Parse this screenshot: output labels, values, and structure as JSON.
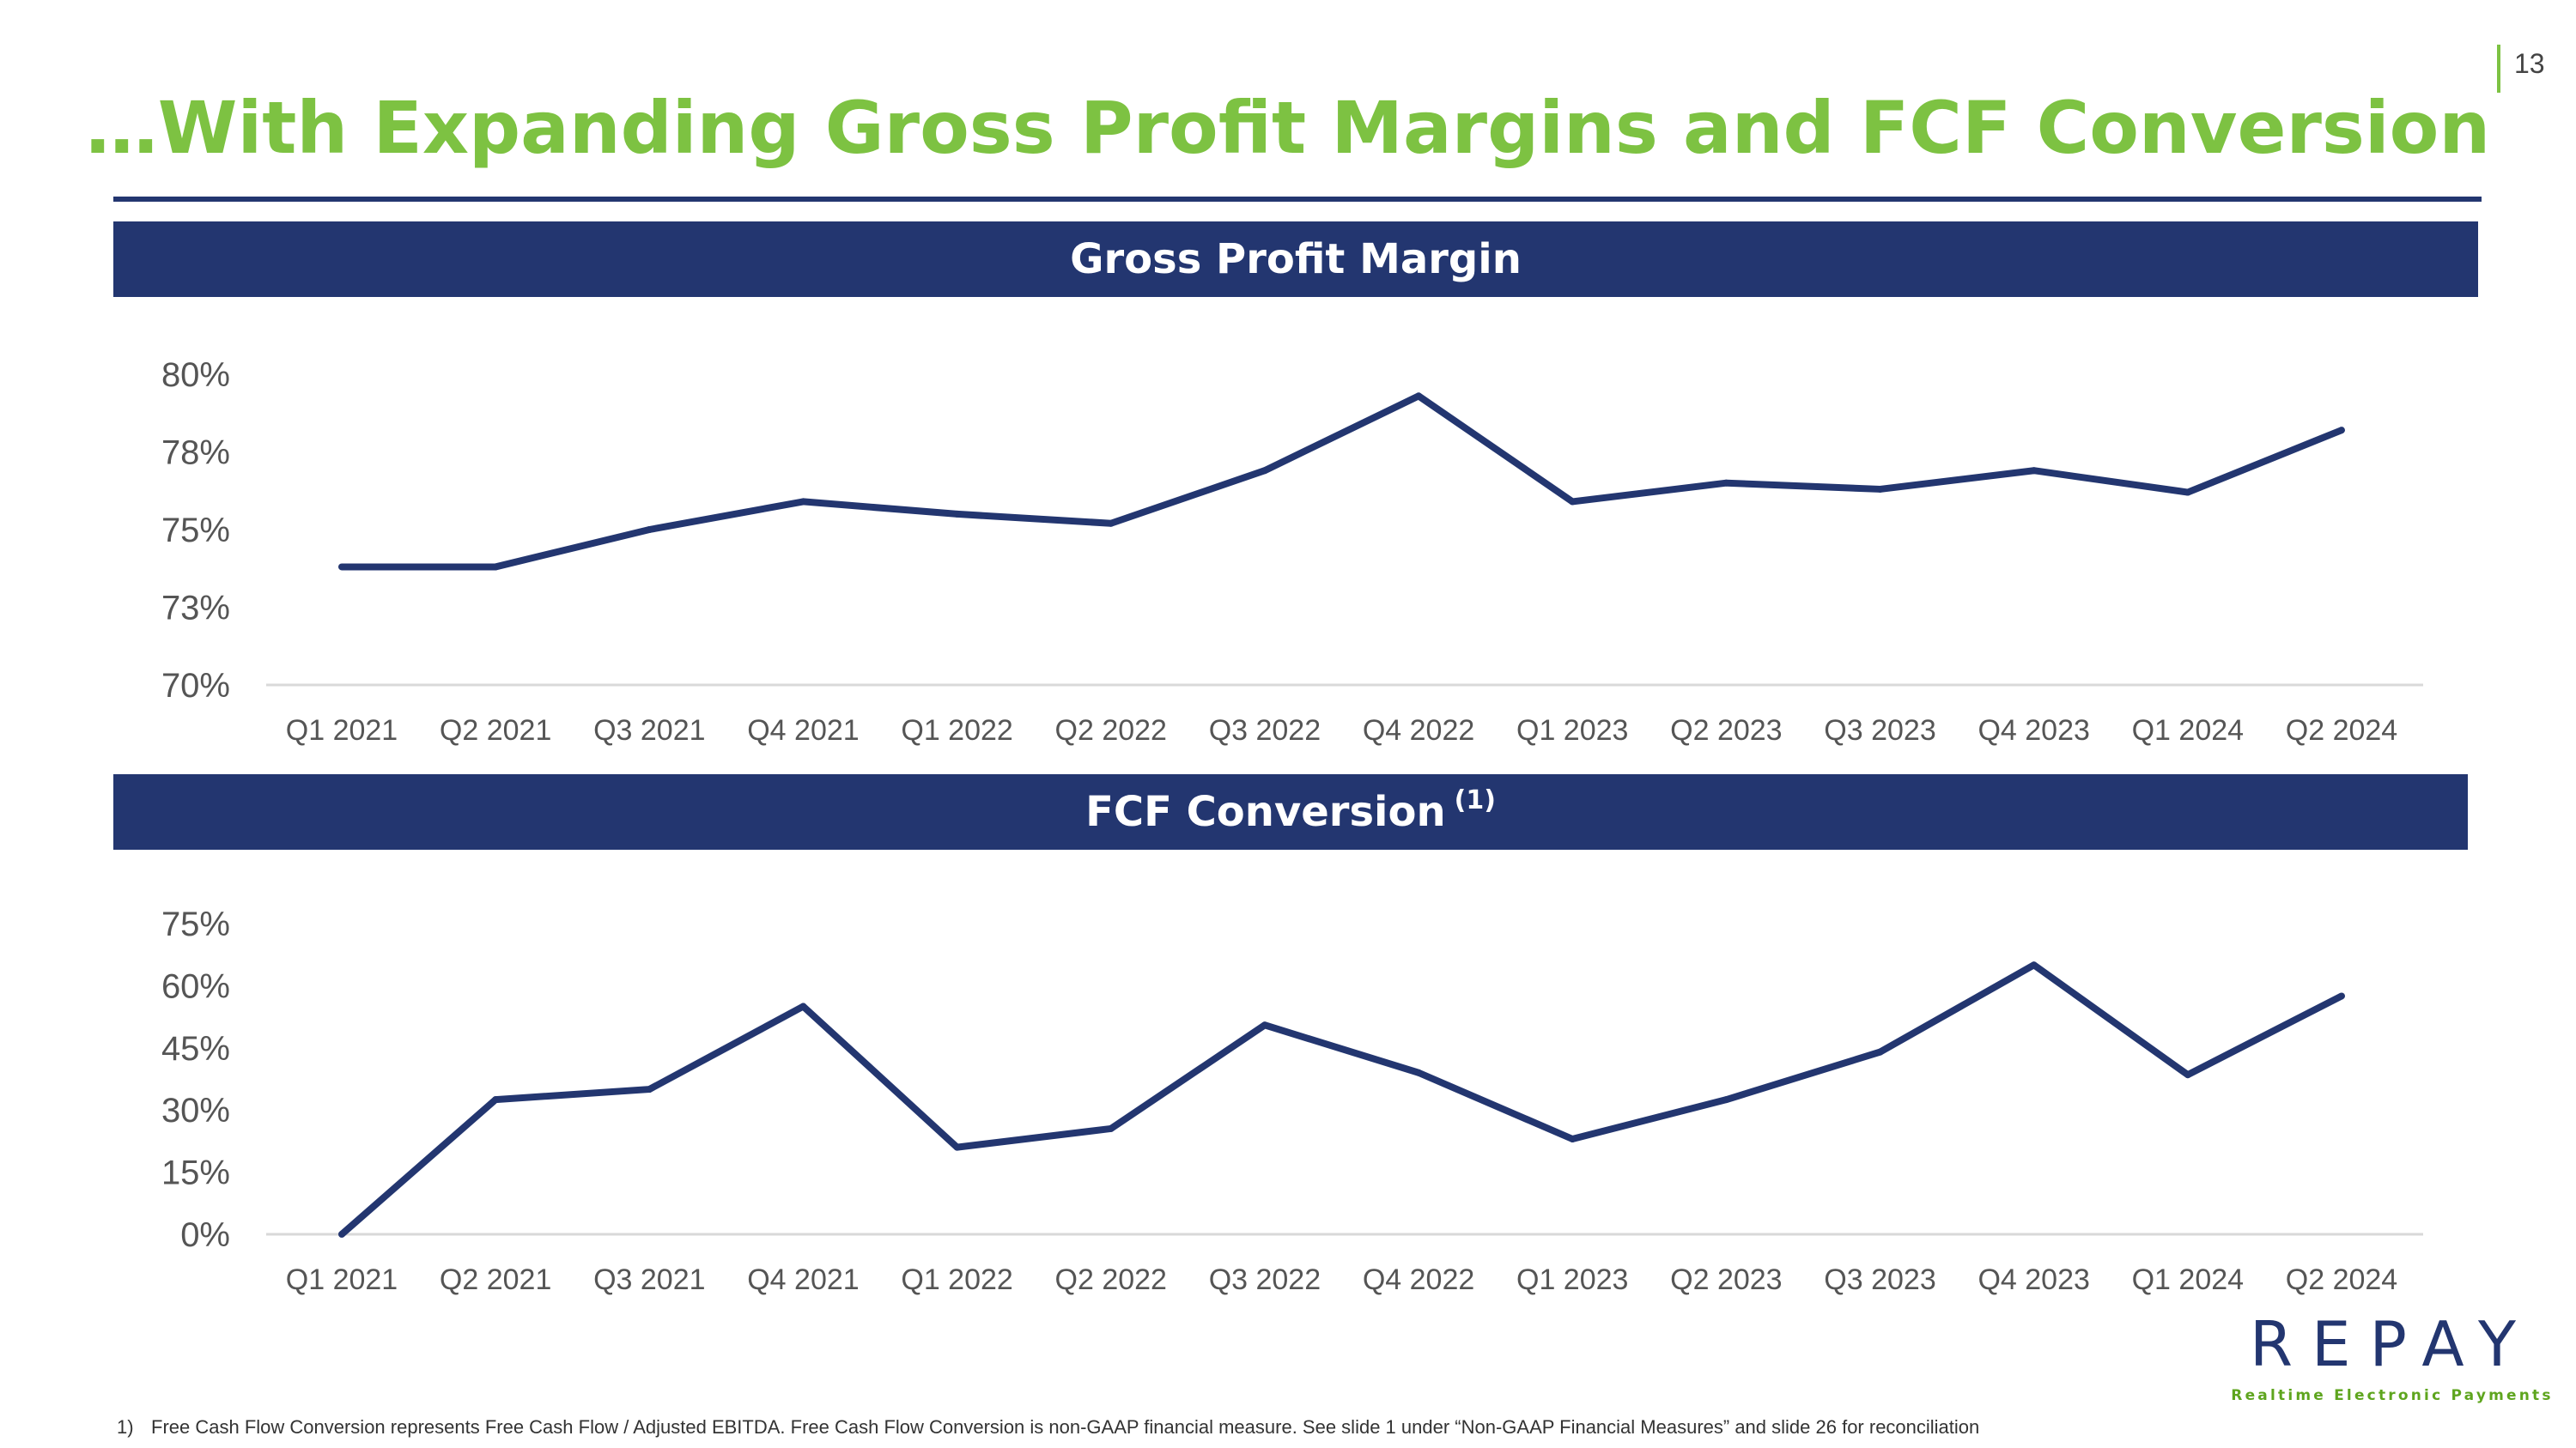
{
  "page_number": "13",
  "title": "…With Expanding Gross Profit Margins and FCF Conversion",
  "logo": {
    "word": "REPAY",
    "tagline": "Realtime Electronic Payments"
  },
  "footnote": {
    "marker": "1)",
    "text": "Free Cash Flow Conversion represents Free Cash Flow / Adjusted EBITDA. Free Cash Flow Conversion is non-GAAP financial measure. See slide 1 under “Non-GAAP Financial Measures” and slide 26 for reconciliation"
  },
  "colors": {
    "brand_green": "#7dc242",
    "navy": "#233670"
  },
  "chart_data": [
    {
      "type": "line",
      "title": "Gross Profit Margin",
      "title_note": "",
      "categories": [
        "Q1 2021",
        "Q2 2021",
        "Q3 2021",
        "Q4 2021",
        "Q1 2022",
        "Q2 2022",
        "Q3 2022",
        "Q4 2022",
        "Q1 2023",
        "Q2 2023",
        "Q3 2023",
        "Q4 2023",
        "Q1 2024",
        "Q2 2024"
      ],
      "series": [
        {
          "values": [
            73.8,
            73.8,
            75.0,
            75.9,
            75.5,
            75.2,
            76.9,
            79.3,
            75.9,
            76.5,
            76.3,
            76.9,
            76.2,
            78.2
          ]
        }
      ],
      "yticks": [
        "70%",
        "73%",
        "75%",
        "78%",
        "80%"
      ],
      "ylim": [
        70,
        80
      ],
      "line_color": "#233670",
      "grid": false
    },
    {
      "type": "line",
      "title": "FCF Conversion",
      "title_note": "(1)",
      "categories": [
        "Q1 2021",
        "Q2 2021",
        "Q3 2021",
        "Q4 2021",
        "Q1 2022",
        "Q2 2022",
        "Q3 2022",
        "Q4 2022",
        "Q1 2023",
        "Q2 2023",
        "Q3 2023",
        "Q4 2023",
        "Q1 2024",
        "Q2 2024"
      ],
      "series": [
        {
          "values": [
            0,
            32.5,
            35,
            55,
            21,
            25.5,
            50.5,
            39,
            23,
            32.5,
            44,
            65,
            38.5,
            57.5
          ]
        }
      ],
      "yticks": [
        "0%",
        "15%",
        "30%",
        "45%",
        "60%",
        "75%"
      ],
      "ylim": [
        0,
        75
      ],
      "line_color": "#233670",
      "grid": false
    }
  ]
}
